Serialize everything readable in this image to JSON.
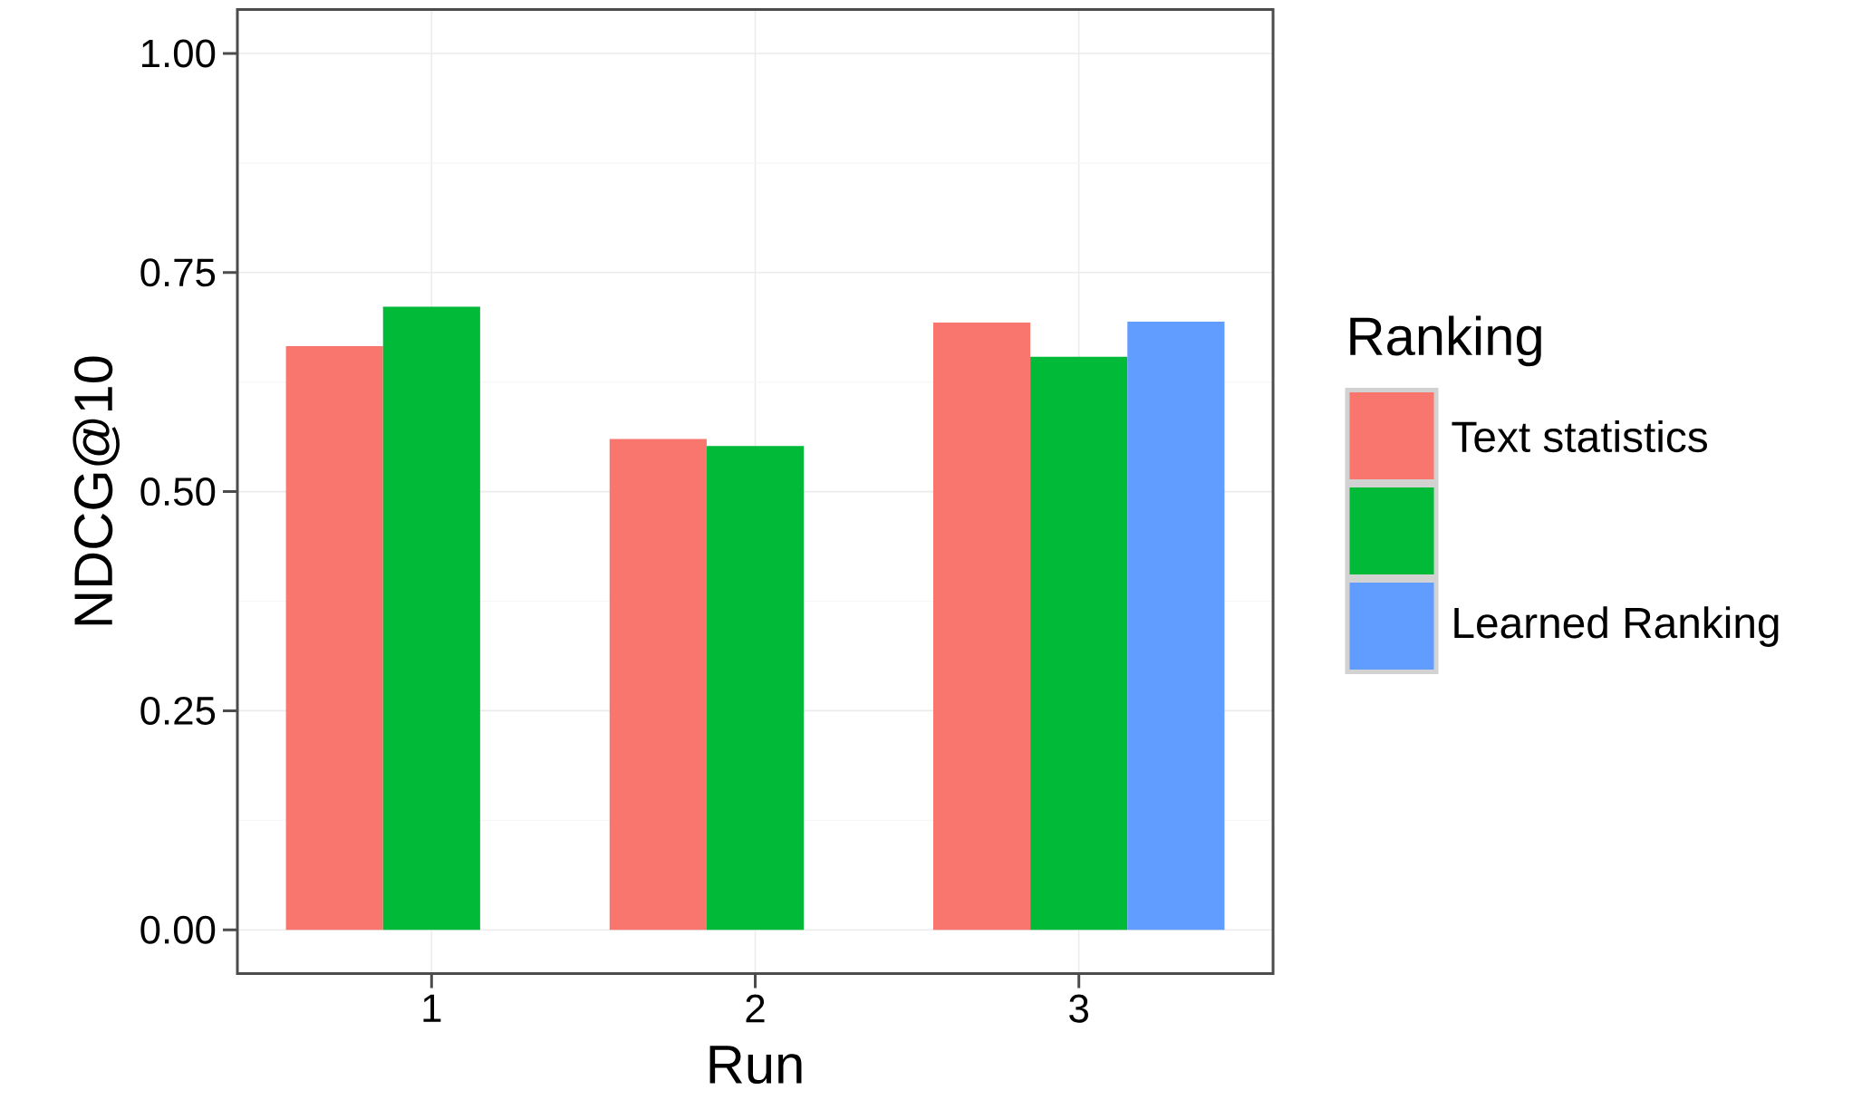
{
  "chart_data": {
    "type": "bar",
    "xlabel": "Run",
    "ylabel": "NDCG@10",
    "legend_title": "Ranking",
    "categories": [
      "1",
      "2",
      "3"
    ],
    "series": [
      {
        "name": "Text statistics",
        "color": "#f8766d",
        "values": [
          0.666,
          0.56,
          0.693
        ]
      },
      {
        "color": "#00ba38",
        "values": [
          0.711,
          0.552,
          0.654
        ]
      },
      {
        "name": "Learned Ranking",
        "color": "#619cff",
        "values": [
          null,
          null,
          0.694
        ]
      }
    ],
    "ylim": [
      -0.05,
      1.05
    ],
    "yticks": [
      {
        "value": 0,
        "label": "0.00"
      },
      {
        "value": 0.25,
        "label": "0.25"
      },
      {
        "value": 0.5,
        "label": "0.50"
      },
      {
        "value": 0.75,
        "label": "0.75"
      },
      {
        "value": 1,
        "label": "1.00"
      }
    ],
    "grid": true,
    "legend": "right"
  }
}
